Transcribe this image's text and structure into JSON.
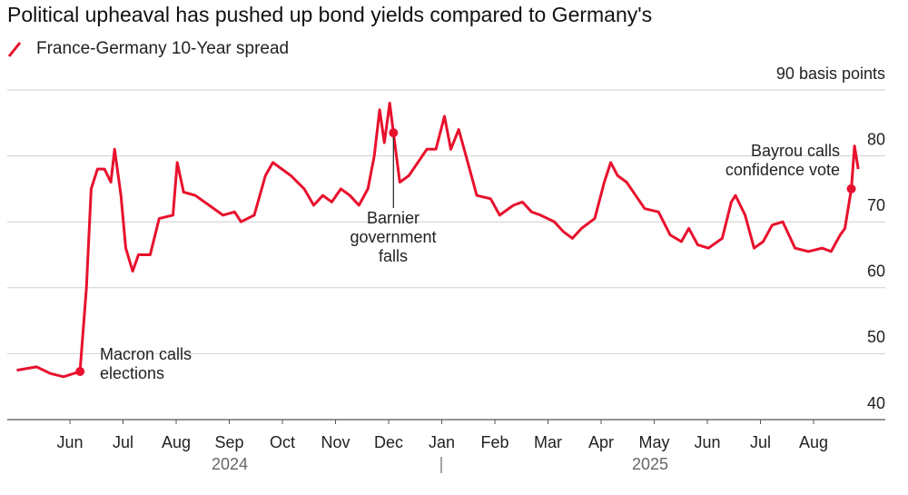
{
  "chart_data": {
    "type": "line",
    "title": "Political upheaval has pushed up bond yields compared to Germany's",
    "series": [
      {
        "name": "France-Germany 10-Year spread",
        "color": "#e8112d",
        "x": [
          4.5,
          4.87,
          5.13,
          5.38,
          5.69,
          5.81,
          5.9,
          6.02,
          6.15,
          6.27,
          6.34,
          6.46,
          6.55,
          6.68,
          6.79,
          7.01,
          7.18,
          7.44,
          7.52,
          7.64,
          7.86,
          8.12,
          8.38,
          8.6,
          8.72,
          8.97,
          9.18,
          9.32,
          9.49,
          9.66,
          9.91,
          10.09,
          10.26,
          10.43,
          10.6,
          10.77,
          10.94,
          11.11,
          11.23,
          11.33,
          11.42,
          11.52,
          11.59,
          11.71,
          11.88,
          12.05,
          12.22,
          12.39,
          12.55,
          12.67,
          12.82,
          12.99,
          13.16,
          13.42,
          13.59,
          13.85,
          14.02,
          14.19,
          14.36,
          14.62,
          14.79,
          14.96,
          15.13,
          15.38,
          15.56,
          15.68,
          15.81,
          15.98,
          16.15,
          16.32,
          16.58,
          16.8,
          17.01,
          17.15,
          17.32,
          17.52,
          17.78,
          17.95,
          18.03,
          18.21,
          18.38,
          18.55,
          18.72,
          18.92,
          19.15,
          19.4,
          19.66,
          19.83,
          20.0,
          20.09,
          20.21,
          20.27,
          20.34
        ],
        "values": [
          47.5,
          48,
          47,
          46.5,
          47.3,
          60,
          75,
          78,
          78,
          76,
          81,
          74,
          66,
          62.5,
          65,
          65,
          70.5,
          71,
          79,
          74.5,
          74,
          72.5,
          71,
          71.5,
          70,
          71,
          77,
          79,
          78,
          77,
          75,
          72.5,
          74,
          73,
          75,
          74,
          72.5,
          75,
          80,
          87,
          82,
          88,
          83.5,
          76,
          77,
          79,
          81,
          81,
          86,
          81,
          84,
          79,
          74,
          73.5,
          71,
          72.5,
          73,
          71.5,
          71,
          70,
          68.5,
          67.5,
          69,
          70.5,
          76,
          79,
          77,
          76,
          74,
          72,
          71.5,
          68,
          67,
          69,
          66.5,
          66,
          67.5,
          73,
          74,
          71,
          66,
          67,
          69.5,
          70,
          66,
          65.5,
          66,
          65.5,
          68,
          69,
          75,
          81.5,
          78
        ]
      }
    ],
    "xlim": [
      4.32,
      20.85
    ],
    "xticks": [
      {
        "value": 5.5,
        "label": "Jun"
      },
      {
        "value": 6.5,
        "label": "Jul"
      },
      {
        "value": 7.5,
        "label": "Aug"
      },
      {
        "value": 8.5,
        "label": "Sep"
      },
      {
        "value": 9.5,
        "label": "Oct"
      },
      {
        "value": 10.5,
        "label": "Nov"
      },
      {
        "value": 11.5,
        "label": "Dec"
      },
      {
        "value": 12.5,
        "label": "Jan"
      },
      {
        "value": 13.5,
        "label": "Feb"
      },
      {
        "value": 14.5,
        "label": "Mar"
      },
      {
        "value": 15.5,
        "label": "Apr"
      },
      {
        "value": 16.5,
        "label": "May"
      },
      {
        "value": 17.5,
        "label": "Jun"
      },
      {
        "value": 18.5,
        "label": "Jul"
      },
      {
        "value": 19.5,
        "label": "Aug"
      }
    ],
    "year_labels": [
      "2024",
      "2025"
    ],
    "ylim": [
      40,
      90
    ],
    "yticks": [
      40,
      50,
      60,
      70,
      80,
      {
        "value": 90,
        "label": "90 basis points"
      }
    ],
    "grid": true,
    "annotations": [
      {
        "lines": [
          "Macron calls",
          "elections"
        ]
      },
      {
        "lines": [
          "Barnier",
          "government",
          "falls"
        ]
      },
      {
        "lines": [
          "Bayrou calls",
          "confidence vote"
        ]
      }
    ]
  }
}
